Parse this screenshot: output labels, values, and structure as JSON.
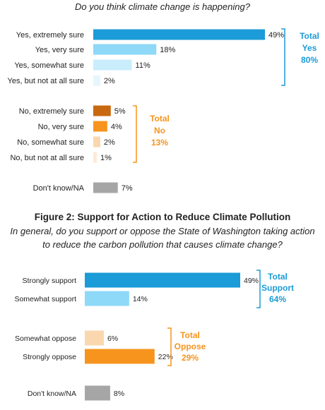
{
  "chart_data": [
    {
      "type": "bar",
      "orientation": "horizontal",
      "question": "Do you think climate change is happening?",
      "categories": [
        "Yes, extremely sure",
        "Yes, very sure",
        "Yes, somewhat sure",
        "Yes, but not at all sure",
        "No, extremely sure",
        "No, very sure",
        "No, somewhat sure",
        "No, but not at all sure",
        "Don't know/NA"
      ],
      "values": [
        49,
        18,
        11,
        2,
        5,
        4,
        2,
        1,
        7
      ],
      "value_labels": [
        "49%",
        "18%",
        "11%",
        "2%",
        "5%",
        "4%",
        "2%",
        "1%",
        "7%"
      ],
      "bar_colors": [
        "#1B9BD7",
        "#8ED8F8",
        "#C9EDFB",
        "#E6F6FD",
        "#C8690F",
        "#F7941D",
        "#FAD7AE",
        "#FCEBD8",
        "#A6A6A6"
      ],
      "groups": [
        {
          "label_lines": [
            "Total",
            "Yes",
            "80%"
          ],
          "color": "#1B9BD7",
          "first": 0,
          "last": 3
        },
        {
          "label_lines": [
            "Total",
            "No",
            "13%"
          ],
          "color": "#F7941D",
          "first": 4,
          "last": 7
        }
      ],
      "xlim": [
        0,
        49
      ]
    },
    {
      "type": "bar",
      "orientation": "horizontal",
      "title": "Figure 2: Support for Action to Reduce Climate Pollution",
      "question_lines": [
        "In general, do you support or oppose the State of Washington taking action",
        "to reduce the carbon pollution that causes climate change?"
      ],
      "categories": [
        "Strongly support",
        "Somewhat support",
        "Somewhat oppose",
        "Strongly oppose",
        "Don't know/NA"
      ],
      "values": [
        49,
        14,
        6,
        22,
        8
      ],
      "value_labels": [
        "49%",
        "14%",
        "6%",
        "22%",
        "8%"
      ],
      "bar_colors": [
        "#1B9BD7",
        "#8ED8F8",
        "#FAD7AE",
        "#F7941D",
        "#A6A6A6"
      ],
      "groups": [
        {
          "label_lines": [
            "Total",
            "Support",
            "64%"
          ],
          "color": "#1B9BD7",
          "first": 0,
          "last": 1
        },
        {
          "label_lines": [
            "Total",
            "Oppose",
            "29%"
          ],
          "color": "#F7941D",
          "first": 2,
          "last": 3
        }
      ],
      "xlim": [
        0,
        49
      ]
    }
  ]
}
